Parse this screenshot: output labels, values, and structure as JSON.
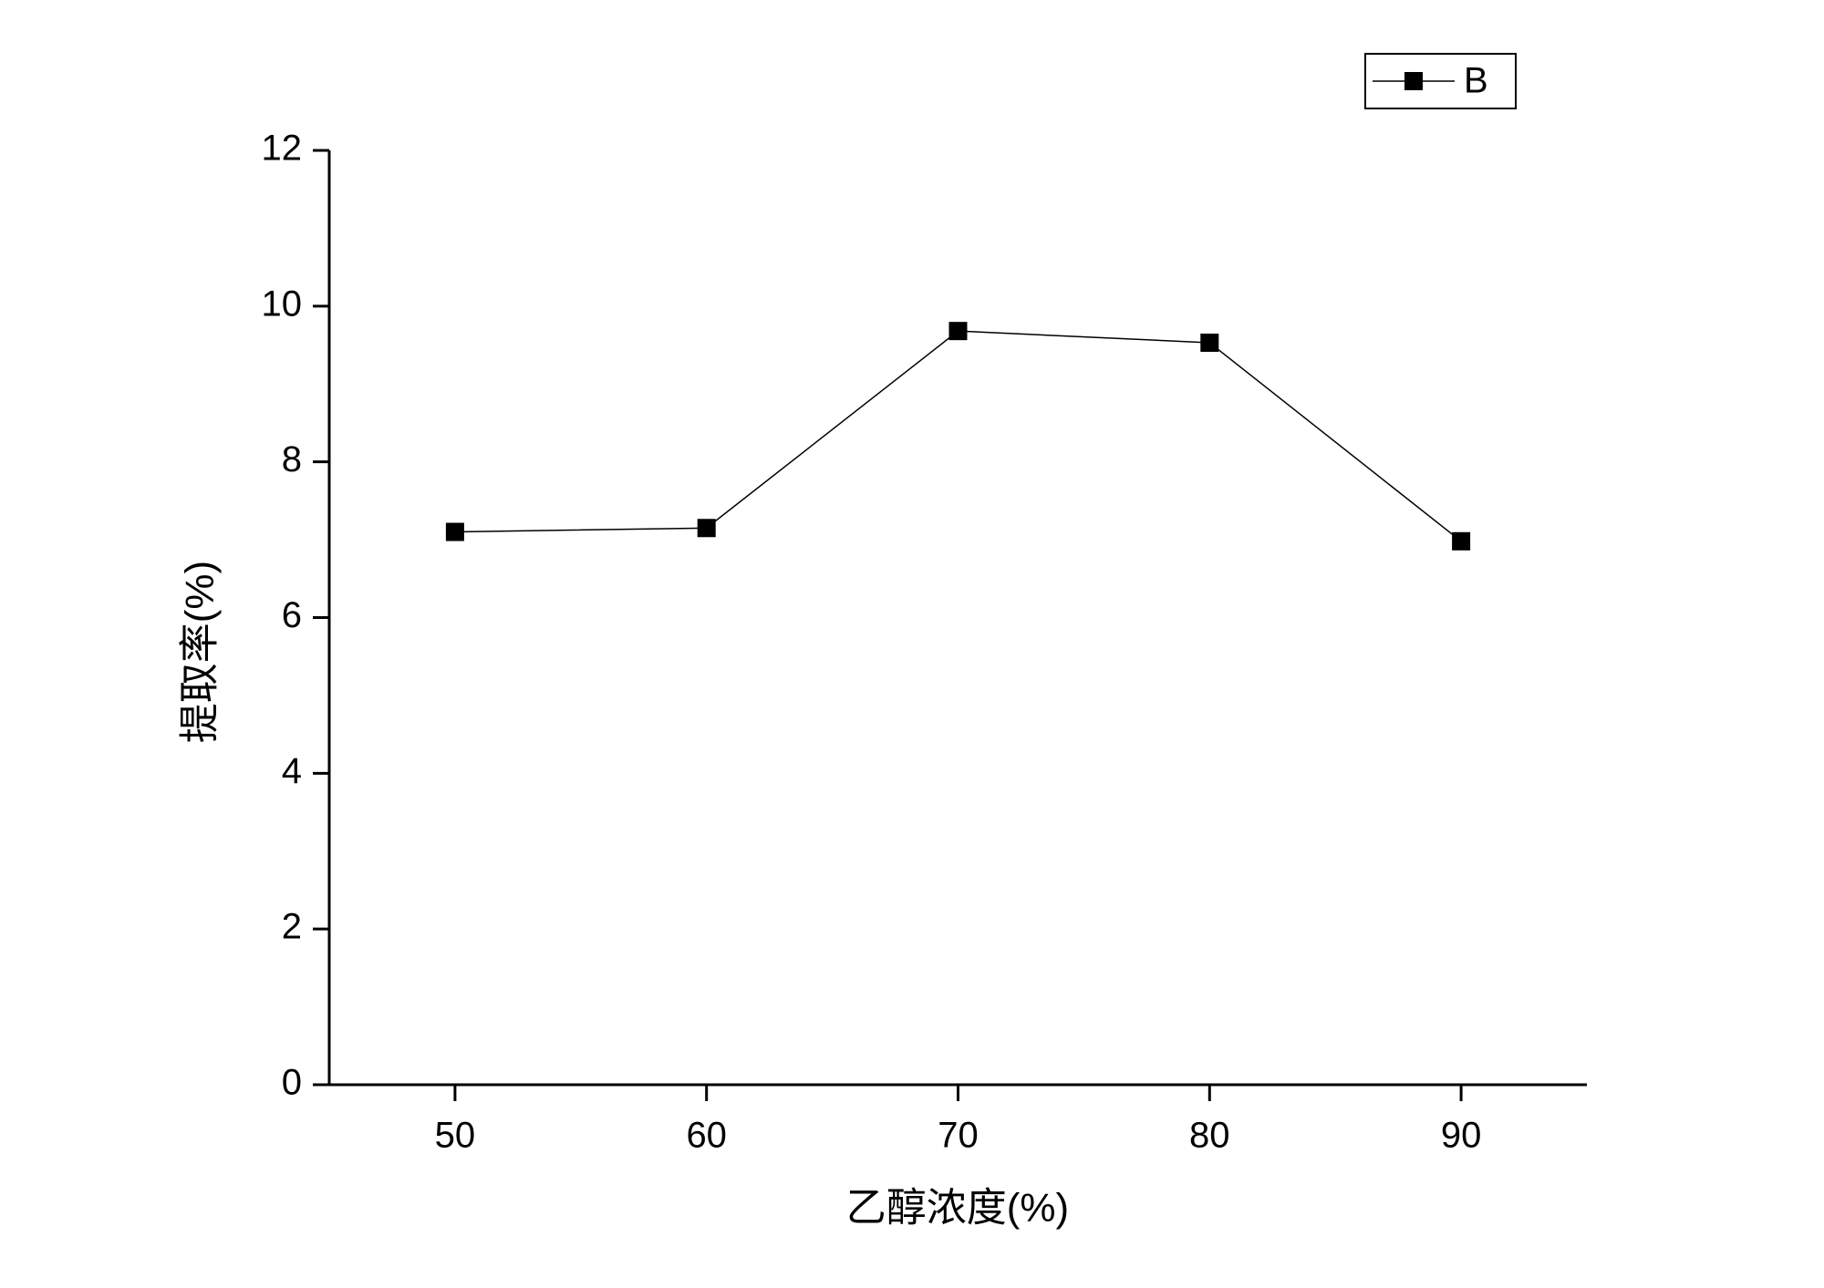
{
  "chart_data": {
    "type": "line",
    "x_label": "乙醇浓度(%)",
    "y_label": "提取率(%)",
    "x": [
      50,
      60,
      70,
      80,
      90
    ],
    "series": [
      {
        "name": "B",
        "color": "#000000",
        "values": [
          7.1,
          7.15,
          9.68,
          9.53,
          6.98
        ]
      }
    ],
    "xlim": [
      45,
      95
    ],
    "xticks": [
      50,
      60,
      70,
      80,
      90
    ],
    "ylim": [
      0,
      12
    ],
    "yticks": [
      0,
      2,
      4,
      6,
      8,
      10,
      12
    ],
    "legend": "top-right",
    "grid": false
  }
}
